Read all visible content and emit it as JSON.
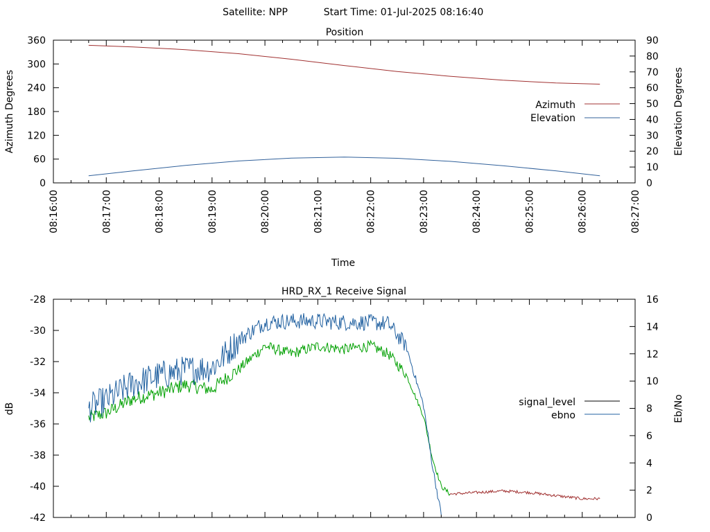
{
  "header": {
    "satellite_label": "Satellite: NPP",
    "start_time_label": "Start Time: 01-Jul-2025 08:16:40"
  },
  "colors": {
    "azimuth": "#a03030",
    "elevation": "#30609a",
    "signal_level": "#000000",
    "ebno": "#2060a0",
    "signal_tail": "#a03030",
    "signal_green": "#00a000",
    "axis": "#000000"
  },
  "chart_data": [
    {
      "id": "position",
      "type": "line",
      "title": "Position",
      "xlabel": "Time",
      "ylabel": "Azimuth Degrees",
      "y2label": "Elevation Degrees",
      "xlim": [
        "08:16:00",
        "08:27:00"
      ],
      "x_ticks": [
        "08:16:00",
        "08:17:00",
        "08:18:00",
        "08:19:00",
        "08:20:00",
        "08:21:00",
        "08:22:00",
        "08:23:00",
        "08:24:00",
        "08:25:00",
        "08:26:00",
        "08:27:00"
      ],
      "ylim": [
        0,
        360
      ],
      "y_ticks": [
        "0",
        "60",
        "120",
        "180",
        "240",
        "300",
        "360"
      ],
      "y2lim": [
        0,
        90
      ],
      "y2_ticks": [
        "0",
        "10",
        "20",
        "30",
        "40",
        "50",
        "60",
        "70",
        "80",
        "90"
      ],
      "legend_position": "right",
      "series": [
        {
          "name": "Azimuth",
          "axis": "y",
          "points": [
            [
              "08:16:40",
              347
            ],
            [
              "08:17:30",
              343
            ],
            [
              "08:18:30",
              336
            ],
            [
              "08:19:30",
              326
            ],
            [
              "08:20:30",
              312
            ],
            [
              "08:21:30",
              296
            ],
            [
              "08:22:30",
              281
            ],
            [
              "08:23:30",
              269
            ],
            [
              "08:24:30",
              259
            ],
            [
              "08:25:30",
              252
            ],
            [
              "08:26:20",
              249
            ]
          ]
        },
        {
          "name": "Elevation",
          "axis": "y2",
          "points": [
            [
              "08:16:40",
              4.5
            ],
            [
              "08:17:30",
              7.5
            ],
            [
              "08:18:30",
              11
            ],
            [
              "08:19:30",
              13.8
            ],
            [
              "08:20:30",
              15.6
            ],
            [
              "08:21:30",
              16.3
            ],
            [
              "08:22:30",
              15.5
            ],
            [
              "08:23:30",
              13.6
            ],
            [
              "08:24:30",
              10.8
            ],
            [
              "08:25:30",
              7.6
            ],
            [
              "08:26:20",
              4.5
            ]
          ]
        }
      ]
    },
    {
      "id": "receive_signal",
      "type": "line",
      "title": "HRD_RX_1 Receive Signal",
      "ylabel": "dB",
      "y2label": "Eb/No",
      "xlim": [
        "08:16:00",
        "08:27:00"
      ],
      "ylim": [
        -42,
        -28
      ],
      "y_ticks": [
        "-42",
        "-40",
        "-38",
        "-36",
        "-34",
        "-32",
        "-30",
        "-28"
      ],
      "y2lim": [
        0,
        16
      ],
      "y2_ticks": [
        "0",
        "2",
        "4",
        "6",
        "8",
        "10",
        "12",
        "14",
        "16"
      ],
      "legend_position": "right",
      "series": [
        {
          "name": "signal_level",
          "axis": "y",
          "points": [
            [
              "08:16:40",
              -35.6
            ],
            [
              "08:17:00",
              -35.3
            ],
            [
              "08:17:30",
              -34.4
            ],
            [
              "08:18:00",
              -34.0
            ],
            [
              "08:18:30",
              -33.5
            ],
            [
              "08:19:00",
              -33.8
            ],
            [
              "08:19:10",
              -33.3
            ],
            [
              "08:19:30",
              -32.5
            ],
            [
              "08:20:00",
              -31.0
            ],
            [
              "08:20:30",
              -31.5
            ],
            [
              "08:21:00",
              -31.0
            ],
            [
              "08:21:30",
              -31.2
            ],
            [
              "08:22:00",
              -31.0
            ],
            [
              "08:22:20",
              -31.5
            ],
            [
              "08:22:40",
              -32.8
            ],
            [
              "08:23:00",
              -35.5
            ],
            [
              "08:23:10",
              -38.2
            ],
            [
              "08:23:20",
              -40.0
            ],
            [
              "08:23:30",
              -40.5
            ],
            [
              "08:24:00",
              -40.4
            ],
            [
              "08:24:30",
              -40.3
            ],
            [
              "08:25:00",
              -40.4
            ],
            [
              "08:25:30",
              -40.6
            ],
            [
              "08:26:00",
              -40.8
            ],
            [
              "08:26:20",
              -40.8
            ]
          ]
        },
        {
          "name": "ebno",
          "axis": "y2",
          "points": [
            [
              "08:16:40",
              8.0
            ],
            [
              "08:17:00",
              8.6
            ],
            [
              "08:17:30",
              9.8
            ],
            [
              "08:18:00",
              10.4
            ],
            [
              "08:18:30",
              10.8
            ],
            [
              "08:19:00",
              11.0
            ],
            [
              "08:19:10",
              11.6
            ],
            [
              "08:19:30",
              13.0
            ],
            [
              "08:20:00",
              14.3
            ],
            [
              "08:20:30",
              14.4
            ],
            [
              "08:21:00",
              14.4
            ],
            [
              "08:21:30",
              14.3
            ],
            [
              "08:22:00",
              14.3
            ],
            [
              "08:22:20",
              14.2
            ],
            [
              "08:22:40",
              12.6
            ],
            [
              "08:23:00",
              8.2
            ],
            [
              "08:23:10",
              3.8
            ],
            [
              "08:23:20",
              0.2
            ]
          ]
        }
      ]
    }
  ]
}
